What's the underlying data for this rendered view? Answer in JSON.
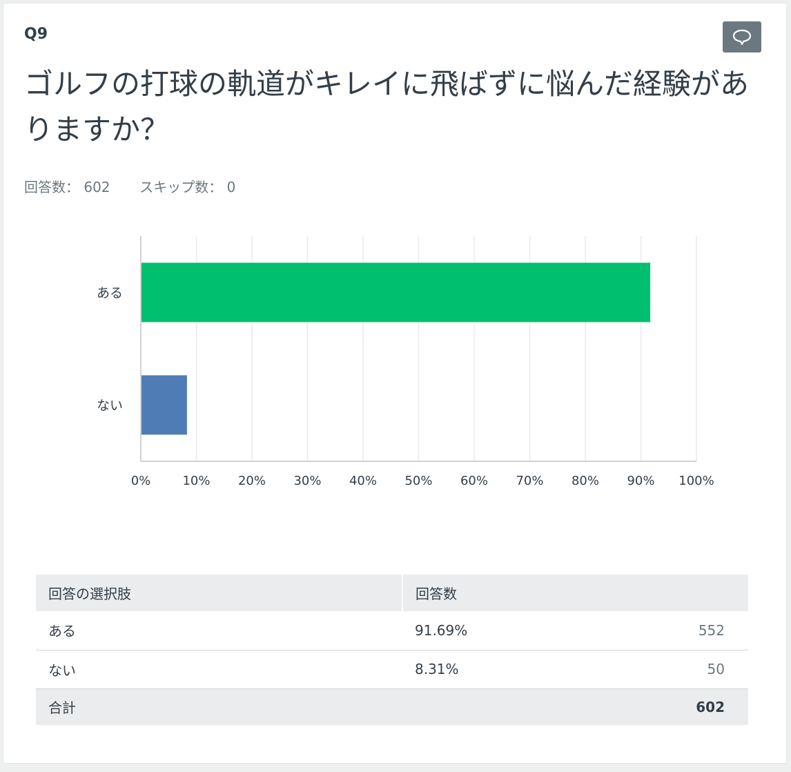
{
  "question": {
    "number": "Q9",
    "title": "ゴルフの打球の軌道がキレイに飛ばずに悩んだ経験がありますか？",
    "answered_label": "回答数：",
    "answered_value": "602",
    "skipped_label": "スキップ数：",
    "skipped_value": "0"
  },
  "icons": {
    "comment": "comment-bubble-icon"
  },
  "colors": {
    "bar_yes": "#00bf6f",
    "bar_no": "#507cb6",
    "grid": "#e9ebec",
    "axis": "#bfc4c7"
  },
  "chart_data": {
    "type": "bar",
    "orientation": "horizontal",
    "categories": [
      "ある",
      "ない"
    ],
    "values": [
      91.69,
      8.31
    ],
    "xlim": [
      0,
      100
    ],
    "x_ticks": [
      "0%",
      "10%",
      "20%",
      "30%",
      "40%",
      "50%",
      "60%",
      "70%",
      "80%",
      "90%",
      "100%"
    ],
    "grid": true,
    "title": "",
    "xlabel": "",
    "ylabel": ""
  },
  "table": {
    "headers": [
      "回答の選択肢",
      "回答数"
    ],
    "rows": [
      {
        "choice": "ある",
        "percent": "91.69%",
        "count": "552"
      },
      {
        "choice": "ない",
        "percent": "8.31%",
        "count": "50"
      }
    ],
    "total": {
      "label": "合計",
      "count": "602"
    }
  }
}
